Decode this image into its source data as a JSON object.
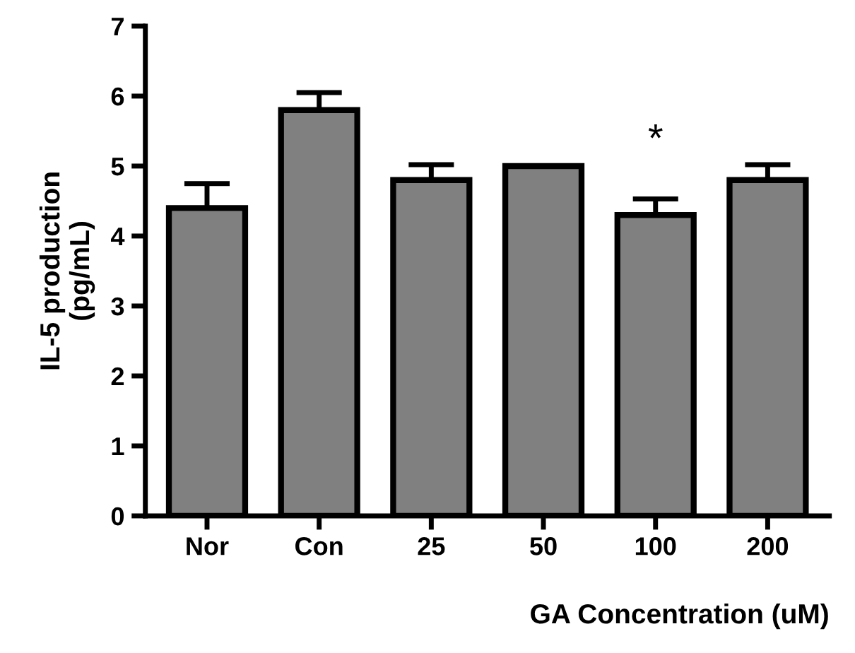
{
  "chart_data": {
    "type": "bar",
    "xlabel": "GA Concentration (uM)",
    "ylabel": "IL-5 production\n(pg/mL)",
    "categories": [
      "Nor",
      "Con",
      "25",
      "50",
      "100",
      "200"
    ],
    "values": [
      4.4,
      5.8,
      4.8,
      5.0,
      4.3,
      4.8
    ],
    "errors": [
      [
        4.4,
        4.75
      ],
      [
        5.8,
        6.05
      ],
      [
        4.8,
        5.02
      ],
      null,
      [
        4.3,
        4.53
      ],
      [
        4.8,
        5.02
      ]
    ],
    "color": "#808080",
    "ylim": [
      0,
      7
    ],
    "yticks": [
      0,
      1,
      2,
      3,
      4,
      5,
      6,
      7
    ],
    "annotations": [
      "*"
    ]
  }
}
